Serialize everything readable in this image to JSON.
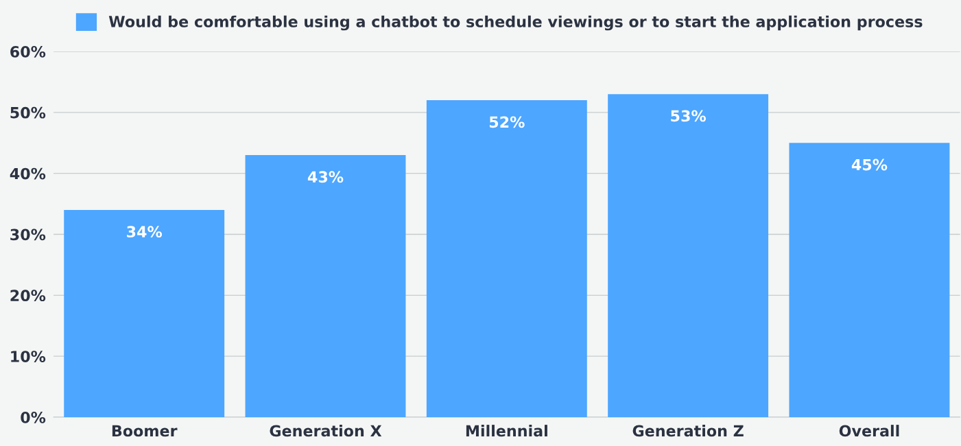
{
  "chart_data": {
    "type": "bar",
    "categories": [
      "Boomer",
      "Generation X",
      "Millennial",
      "Generation Z",
      "Overall"
    ],
    "series": [
      {
        "name": "Would be comfortable using a chatbot to schedule viewings or to start the application process",
        "color": "#4da6ff",
        "values": [
          34,
          43,
          52,
          53,
          45
        ],
        "value_labels": [
          "34%",
          "43%",
          "52%",
          "53%",
          "45%"
        ]
      }
    ],
    "ylim": [
      0,
      60
    ],
    "yticks": [
      {
        "value": 0,
        "label": "0%"
      },
      {
        "value": 10,
        "label": "10%"
      },
      {
        "value": 20,
        "label": "20%"
      },
      {
        "value": 30,
        "label": "30%"
      },
      {
        "value": 40,
        "label": "40%"
      },
      {
        "value": 50,
        "label": "50%"
      },
      {
        "value": 60,
        "label": "60%"
      }
    ],
    "grid": "y",
    "legend": "top"
  }
}
